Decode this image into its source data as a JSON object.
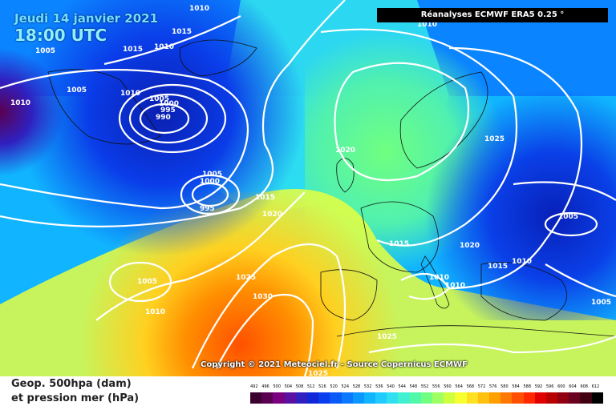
{
  "header": {
    "date": "Jeudi 14 janvier 2021",
    "time": "18:00 UTC",
    "source": "Réanalyses ECMWF ERA5 0.25 °"
  },
  "copyright": "Copyright © 2021 Meteociel.fr - Source Copernicus ECMWF",
  "legend": {
    "title_line1": "Geop. 500hpa (dam)",
    "title_line2": "et pression mer (hPa)",
    "scale_values": [
      "492",
      "496",
      "500",
      "504",
      "508",
      "512",
      "516",
      "520",
      "524",
      "528",
      "532",
      "536",
      "540",
      "544",
      "548",
      "552",
      "556",
      "560",
      "564",
      "568",
      "572",
      "576",
      "580",
      "584",
      "588",
      "592",
      "596",
      "600",
      "604",
      "608",
      "612"
    ],
    "scale_colors": [
      "#3a0030",
      "#5a0050",
      "#7a0080",
      "#5a10a0",
      "#3020c0",
      "#1028d8",
      "#0a3cf0",
      "#0a5af8",
      "#0a78ff",
      "#0a98ff",
      "#10b4ff",
      "#20ccff",
      "#30e0f0",
      "#40f0d0",
      "#50f8a8",
      "#70ff80",
      "#a0ff60",
      "#d0ff40",
      "#f8ff30",
      "#ffe020",
      "#ffc010",
      "#ffa000",
      "#ff7800",
      "#ff5000",
      "#ff2800",
      "#e00000",
      "#b80000",
      "#900010",
      "#680020",
      "#400010",
      "#000000"
    ]
  },
  "pressure_labels": [
    "1010",
    "1015",
    "1010",
    "1005",
    "1015",
    "1010",
    "1005",
    "1010",
    "1005",
    "1010",
    "1000",
    "995",
    "990",
    "1005",
    "1000",
    "995",
    "1020",
    "1015",
    "1020",
    "1025",
    "1005",
    "1010",
    "1025",
    "1030",
    "1015",
    "1020",
    "1010",
    "1010",
    "1015",
    "1010",
    "1005",
    "1005",
    "1025",
    "1025"
  ]
}
